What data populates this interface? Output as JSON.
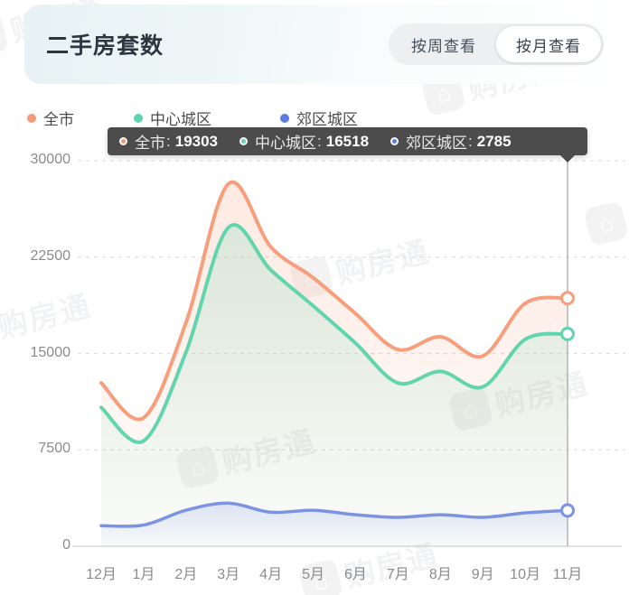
{
  "header": {
    "title": "二手房套数",
    "toggle": {
      "week_label": "按周查看",
      "month_label": "按月查看",
      "selected": "month"
    }
  },
  "legend": [
    {
      "label": "全市",
      "color": "#f29b76"
    },
    {
      "label": "中心城区",
      "color": "#5fd4ae"
    },
    {
      "label": "郊区城区",
      "color": "#5f7ce0"
    }
  ],
  "tooltip": {
    "separator": ":",
    "items": [
      {
        "label": "全市",
        "value": "19303",
        "color": "#f29b76"
      },
      {
        "label": "中心城区",
        "value": "16518",
        "color": "#5fd4ae"
      },
      {
        "label": "郊区城区",
        "value": "2785",
        "color": "#5f7ce0"
      }
    ]
  },
  "watermark": {
    "text": "购房通",
    "logo_icon": "⌂"
  },
  "chart_data": {
    "type": "line",
    "title": "二手房套数",
    "categories": [
      "12月",
      "1月",
      "2月",
      "3月",
      "4月",
      "5月",
      "6月",
      "7月",
      "8月",
      "9月",
      "10月",
      "11月"
    ],
    "series": [
      {
        "name": "全市",
        "color": "#f79e7c",
        "values": [
          12700,
          10000,
          17400,
          28200,
          23300,
          20900,
          18100,
          15300,
          16300,
          14800,
          18900,
          19303
        ]
      },
      {
        "name": "中心城区",
        "color": "#62d5af",
        "values": [
          10800,
          8200,
          15100,
          24800,
          21500,
          18700,
          15800,
          12700,
          13600,
          12400,
          16100,
          16518
        ]
      },
      {
        "name": "郊区城区",
        "color": "#7b93e0",
        "values": [
          1600,
          1650,
          2800,
          3350,
          2650,
          2800,
          2450,
          2250,
          2450,
          2250,
          2600,
          2785
        ]
      }
    ],
    "xlabel": "",
    "ylabel": "",
    "ylim": [
      0,
      30000
    ],
    "yticks": [
      0,
      7500,
      15000,
      22500,
      30000
    ],
    "grid": "dashed-horizontal",
    "legend_position": "top-left",
    "area_fill": true,
    "smooth": true,
    "hover_category": "11月"
  }
}
